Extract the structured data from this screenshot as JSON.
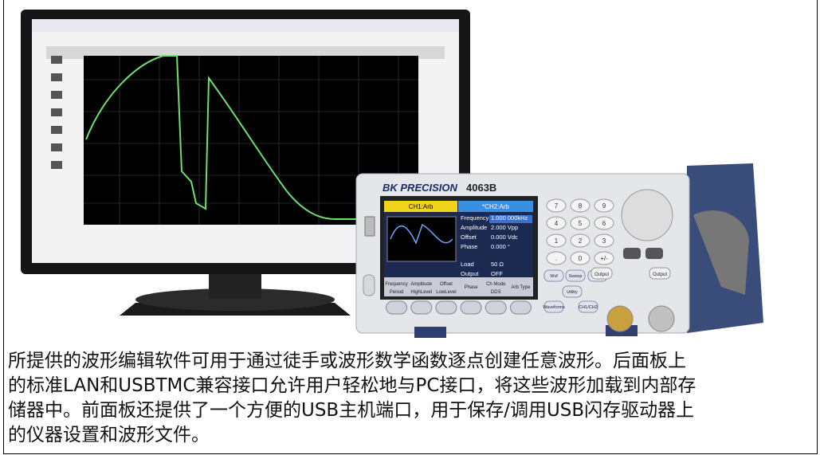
{
  "caption": {
    "lines": [
      "所提供的波形编辑软件可用于通过徒手或波形数学函数逐点创建任意波形。后面板上",
      "的标准LAN和USBTMC兼容接口允许用户轻松地与PC接口，将这些波形加载到内部存",
      "储器中。前面板还提供了一个方便的USB主机端口，用于保存/调用USB闪存驱动器上",
      "的仪器设置和波形文件。"
    ]
  },
  "instrument": {
    "brand": "BK PRECISION",
    "model": "4063B",
    "channels": [
      "CH1:Arb",
      "*CH2:Arb"
    ],
    "params": [
      {
        "name": "Frequency",
        "value": "1.000 000kHz"
      },
      {
        "name": "Amplitude",
        "value": "2.000 Vpp"
      },
      {
        "name": "Offset",
        "value": "0.000 Vdc"
      },
      {
        "name": "Phase",
        "value": "0.000 °"
      },
      {
        "name": "Load",
        "value": "50 Ω"
      },
      {
        "name": "Output",
        "value": "OFF"
      }
    ],
    "softkeys": [
      [
        "Frequency",
        "Period"
      ],
      [
        "Amplitude",
        "HighLevel"
      ],
      [
        "Offset",
        "LowLevel"
      ],
      [
        "Phase",
        ""
      ],
      [
        "Ch Mode",
        "DDS"
      ],
      [
        "Arb Type",
        ""
      ]
    ],
    "keypad": [
      "7",
      "8",
      "9",
      "4",
      "5",
      "6",
      "1",
      "2",
      "3",
      ".",
      "0",
      "+/-"
    ],
    "buttons": [
      "Wvf",
      "Sweep",
      "Burst",
      "Utility",
      "Waveforms",
      "CH1/CH2"
    ],
    "outputs": [
      "Output",
      "Output"
    ]
  }
}
